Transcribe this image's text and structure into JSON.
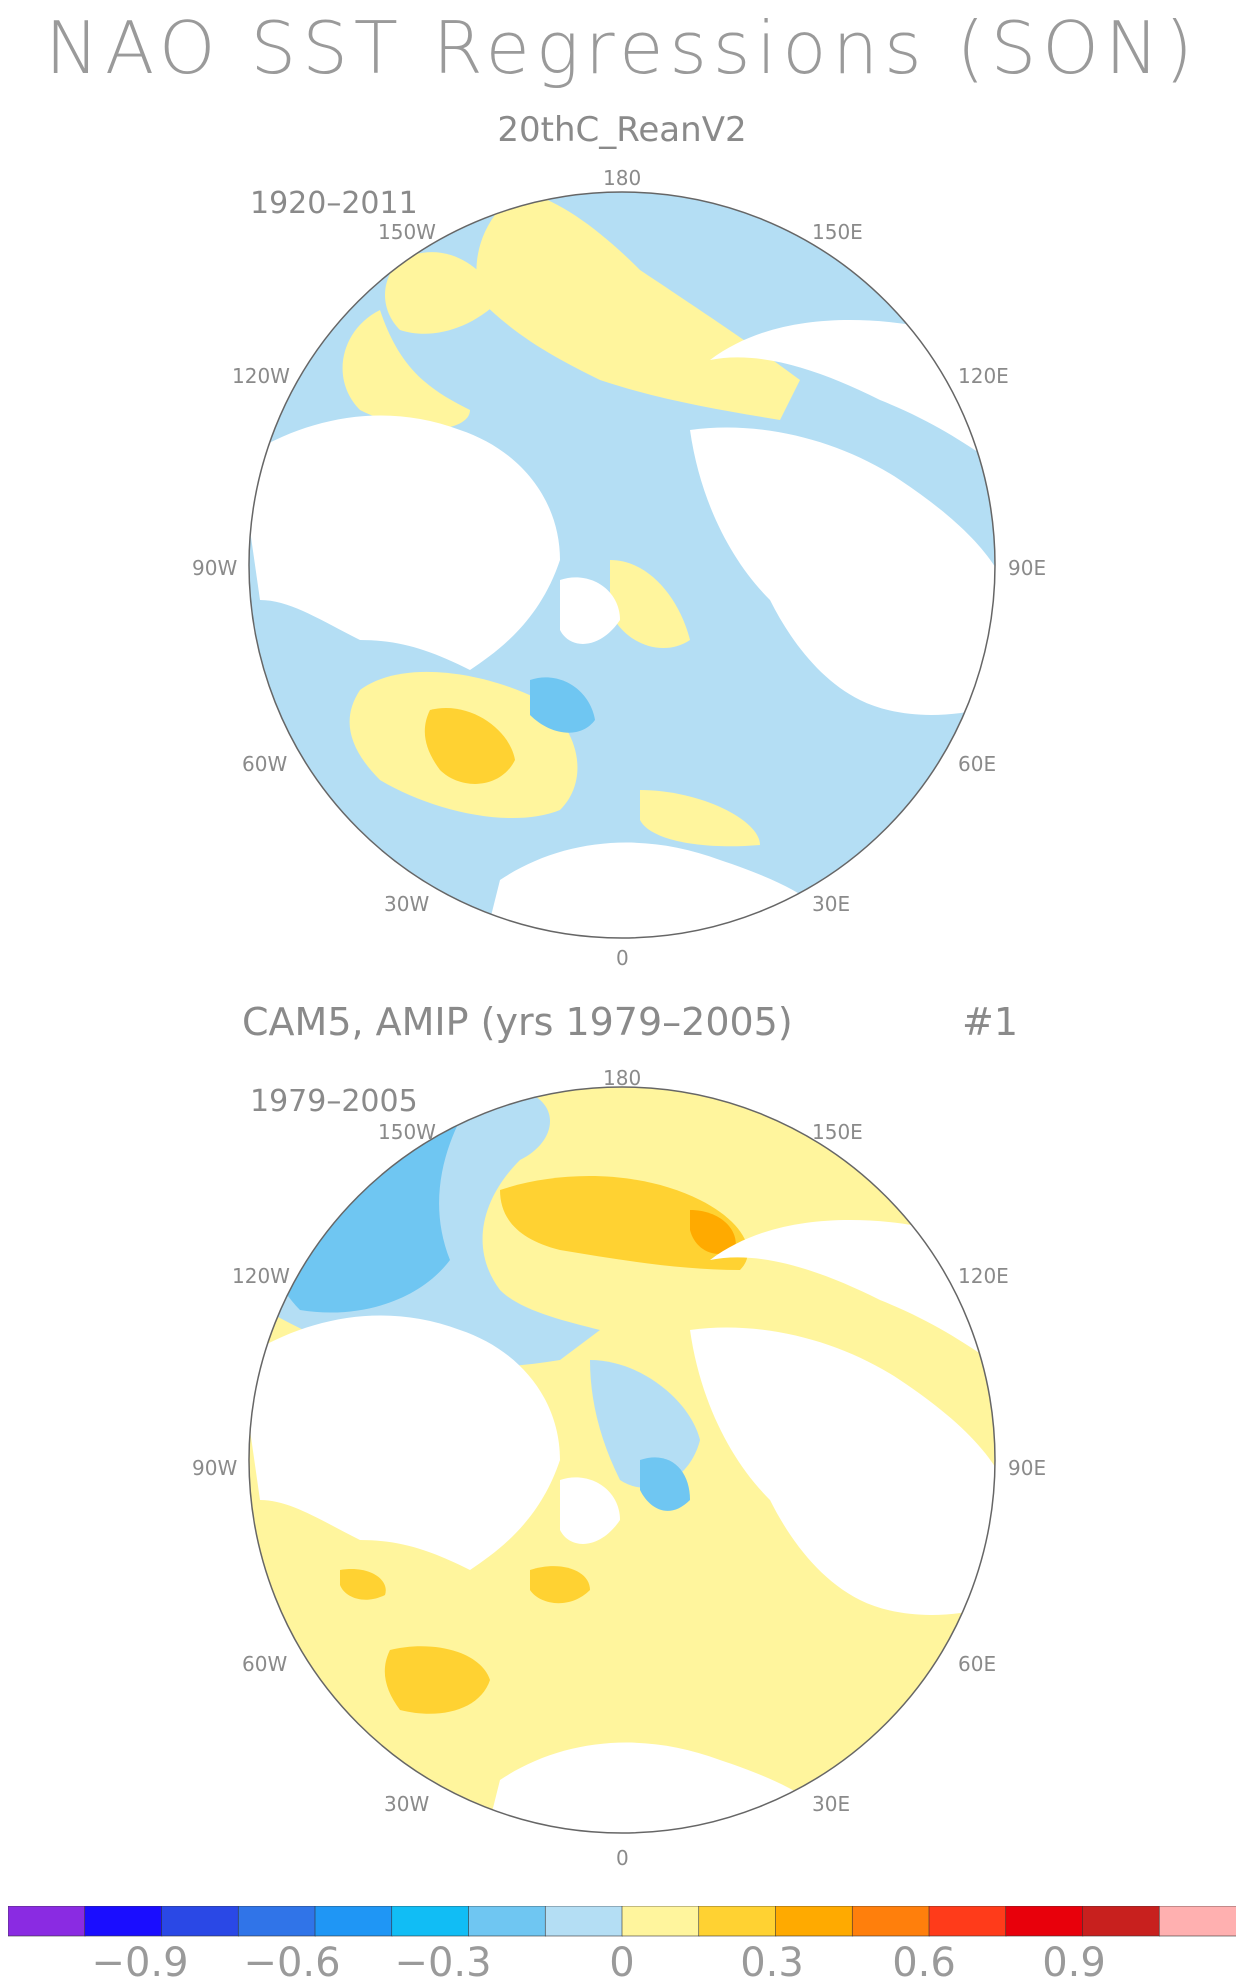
{
  "title": "NAO SST Regressions (SON)",
  "panel1": {
    "subtitle": "20thC_ReanV2",
    "years": "1920–2011",
    "lon_labels": {
      "top": "180",
      "bottom": "0",
      "left": "90W",
      "right": "90E",
      "upper_left": "150W",
      "upper_right": "150E",
      "mid_left_upper": "120W",
      "mid_right_upper": "120E",
      "mid_left_lower": "60W",
      "mid_right_lower": "60E",
      "lower_left": "30W",
      "lower_right": "30E"
    }
  },
  "panel2": {
    "model_label": "CAM5, AMIP (yrs 1979–2005)",
    "member": "#1",
    "years": "1979–2005",
    "lon_labels": {
      "top": "180",
      "bottom": "0",
      "left": "90W",
      "right": "90E",
      "upper_left": "150W",
      "upper_right": "150E",
      "mid_left_upper": "120W",
      "mid_right_upper": "120E",
      "mid_left_lower": "60W",
      "mid_right_lower": "60E",
      "lower_left": "30W",
      "lower_right": "30E"
    }
  },
  "colorbar": {
    "colors": [
      "#8a2be2",
      "#1a0dff",
      "#2a48e6",
      "#3074e8",
      "#1f96f5",
      "#11bdf5",
      "#6fc6f2",
      "#b4def4",
      "#fff59d",
      "#ffd232",
      "#ffaa00",
      "#ff7f0c",
      "#ff3b1a",
      "#e8000b",
      "#c8201e",
      "#ffb0b0"
    ],
    "tick_labels": [
      "−0.9",
      "−0.6",
      "−0.3",
      "0",
      "0.3",
      "0.6",
      "0.9"
    ]
  },
  "chart_data": {
    "type": "map",
    "projection": "north-polar-stereographic",
    "variable": "SST regression on NAO index (SON)",
    "color_scale_range": [
      -1.05,
      1.05
    ],
    "color_step": 0.15,
    "panels": [
      {
        "dataset": "20thC_ReanV2",
        "period": "1920–2011",
        "features": [
          {
            "region": "subpolar North Atlantic (south of Greenland)",
            "sign": "positive",
            "max": 0.3
          },
          {
            "region": "Labrador/Irminger Sea",
            "sign": "negative",
            "min": -0.3
          },
          {
            "region": "North Pacific central",
            "sign": "negative",
            "min": -0.15
          }
        ]
      },
      {
        "dataset": "CAM5, AMIP",
        "period": "1979–2005",
        "member": "#1",
        "features": [
          {
            "region": "North Pacific",
            "sign": "negative",
            "min": -0.3
          },
          {
            "region": "Bering/Kamchatka",
            "sign": "positive",
            "max": 0.6
          },
          {
            "region": "subtropical North Atlantic",
            "sign": "positive",
            "max": 0.3
          },
          {
            "region": "Barents/Kara Seas",
            "sign": "negative",
            "min": -0.45
          }
        ]
      }
    ]
  }
}
